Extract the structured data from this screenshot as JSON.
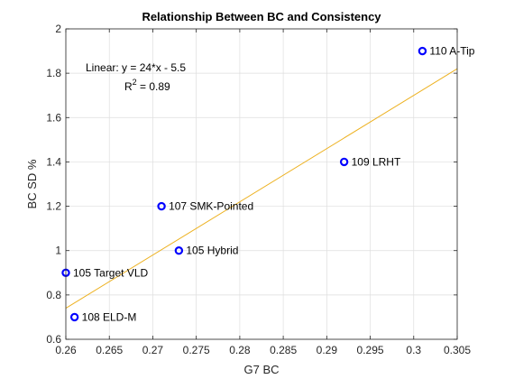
{
  "chart_data": {
    "type": "scatter",
    "title": "Relationship Between BC and Consistency",
    "xlabel": "G7 BC",
    "ylabel": "BC SD %",
    "xlim": [
      0.26,
      0.305
    ],
    "ylim": [
      0.6,
      2.0
    ],
    "xticks": [
      0.26,
      0.265,
      0.27,
      0.275,
      0.28,
      0.285,
      0.29,
      0.295,
      0.3,
      0.305
    ],
    "xtick_labels": [
      "0.26",
      "0.265",
      "0.27",
      "0.275",
      "0.28",
      "0.285",
      "0.29",
      "0.295",
      "0.3",
      "0.305"
    ],
    "yticks": [
      0.6,
      0.8,
      1.0,
      1.2,
      1.4,
      1.6,
      1.8,
      2.0
    ],
    "ytick_labels": [
      "0.6",
      "0.8",
      "1",
      "1.2",
      "1.4",
      "1.6",
      "1.8",
      "2"
    ],
    "grid": true,
    "points": [
      {
        "label": "110 A-Tip",
        "x": 0.301,
        "y": 1.9
      },
      {
        "label": "109 LRHT",
        "x": 0.292,
        "y": 1.4
      },
      {
        "label": "107 SMK-Pointed",
        "x": 0.271,
        "y": 1.2
      },
      {
        "label": "105 Hybrid",
        "x": 0.273,
        "y": 1.0
      },
      {
        "label": "105 Target VLD",
        "x": 0.26,
        "y": 0.9
      },
      {
        "label": "108 ELD-M",
        "x": 0.261,
        "y": 0.7
      }
    ],
    "fit": {
      "slope": 24,
      "intercept": -5.5,
      "equation_text": "Linear:  y = 24*x - 5.5",
      "r2_prefix": "R",
      "r2_sup": "2",
      "r2_suffix": " = 0.89"
    },
    "colors": {
      "points": "#0000ff",
      "fit_line": "#edb120",
      "grid": "#dedede",
      "axes": "#262626"
    }
  }
}
